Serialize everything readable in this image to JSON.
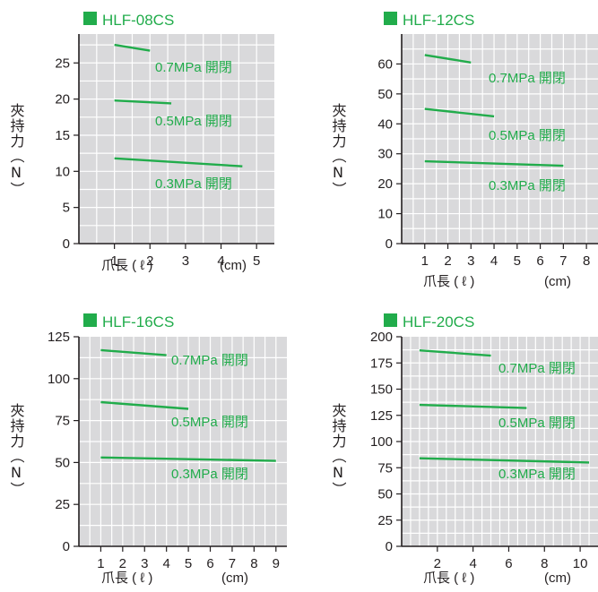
{
  "chart_data": [
    {
      "type": "line",
      "title": "HLF-08CS",
      "ylabel": "夾持力（N）",
      "xlabel": "爪長 ( ℓ )",
      "xunit": "(cm)",
      "xlim": [
        0,
        5.5
      ],
      "ylim": [
        0,
        29
      ],
      "x_ticks": [
        "1",
        "2",
        "3",
        "4",
        "5"
      ],
      "y_ticks": [
        "0",
        "5",
        "10",
        "15",
        "20",
        "25"
      ],
      "series": [
        {
          "name": "0.7MPa 開閉",
          "x": [
            1,
            2
          ],
          "y": [
            27.5,
            26.7
          ]
        },
        {
          "name": "0.5MPa 開閉",
          "x": [
            1,
            2.6
          ],
          "y": [
            19.8,
            19.4
          ]
        },
        {
          "name": "0.3MPa 開閉",
          "x": [
            1,
            4.6
          ],
          "y": [
            11.8,
            10.7
          ]
        }
      ]
    },
    {
      "type": "line",
      "title": "HLF-12CS",
      "ylabel": "夾持力（N）",
      "xlabel": "爪長 ( ℓ )",
      "xunit": "(cm)",
      "xlim": [
        0,
        8.5
      ],
      "ylim": [
        0,
        70
      ],
      "x_ticks": [
        "1",
        "2",
        "3",
        "4",
        "5",
        "6",
        "7",
        "8"
      ],
      "y_ticks": [
        "0",
        "10",
        "20",
        "30",
        "40",
        "50",
        "60"
      ],
      "series": [
        {
          "name": "0.7MPa 開閉",
          "x": [
            1,
            3
          ],
          "y": [
            63,
            60.5
          ]
        },
        {
          "name": "0.5MPa 開閉",
          "x": [
            1,
            4
          ],
          "y": [
            45,
            42.5
          ]
        },
        {
          "name": "0.3MPa 開閉",
          "x": [
            1,
            7
          ],
          "y": [
            27.5,
            26
          ]
        }
      ]
    },
    {
      "type": "line",
      "title": "HLF-16CS",
      "ylabel": "夾持力（N）",
      "xlabel": "爪長 ( ℓ )",
      "xunit": "(cm)",
      "xlim": [
        0,
        9.5
      ],
      "ylim": [
        0,
        125
      ],
      "x_ticks": [
        "1",
        "2",
        "3",
        "4",
        "5",
        "6",
        "7",
        "8",
        "9"
      ],
      "y_ticks": [
        "0",
        "25",
        "50",
        "75",
        "100",
        "125"
      ],
      "series": [
        {
          "name": "0.7MPa 開閉",
          "x": [
            1,
            4
          ],
          "y": [
            117,
            114
          ]
        },
        {
          "name": "0.5MPa 開閉",
          "x": [
            1,
            5
          ],
          "y": [
            86,
            82
          ]
        },
        {
          "name": "0.3MPa 開閉",
          "x": [
            1,
            9
          ],
          "y": [
            53,
            51
          ]
        }
      ]
    },
    {
      "type": "line",
      "title": "HLF-20CS",
      "ylabel": "夾持力（N）",
      "xlabel": "爪長 ( ℓ )",
      "xunit": "(cm)",
      "xlim": [
        0,
        11
      ],
      "ylim": [
        0,
        200
      ],
      "x_ticks": [
        "2",
        "4",
        "6",
        "8",
        "10"
      ],
      "y_ticks": [
        "0",
        "25",
        "50",
        "75",
        "100",
        "125",
        "150",
        "175",
        "200"
      ],
      "series": [
        {
          "name": "0.7MPa 開閉",
          "x": [
            1,
            5
          ],
          "y": [
            187,
            182
          ]
        },
        {
          "name": "0.5MPa 開閉",
          "x": [
            1,
            7
          ],
          "y": [
            135,
            132
          ]
        },
        {
          "name": "0.3MPa 開閉",
          "x": [
            1,
            10.5
          ],
          "y": [
            84,
            80
          ]
        }
      ]
    }
  ],
  "colors": {
    "plot_bg": "#d9d9db",
    "grid": "#ffffff",
    "axis": "#231f20",
    "series": "#21ac4b",
    "label": "#21ac4b",
    "title_square": "#21ac4b"
  }
}
